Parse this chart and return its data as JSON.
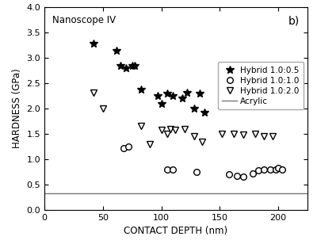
{
  "title_text": "Nanoscope IV",
  "panel_label": "b)",
  "xlabel": "CONTACT DEPTH (nm)",
  "ylabel": "HARDNESS (GPa)",
  "xlim": [
    0,
    225
  ],
  "ylim": [
    0.0,
    4.0
  ],
  "xticks": [
    0,
    50,
    100,
    150,
    200
  ],
  "yticks": [
    0.0,
    0.5,
    1.0,
    1.5,
    2.0,
    2.5,
    3.0,
    3.5,
    4.0
  ],
  "acrylic_y": 0.32,
  "hybrid_05_x": [
    42,
    62,
    65,
    70,
    75,
    77,
    83,
    97,
    100,
    105,
    110,
    118,
    122,
    128,
    133,
    137
  ],
  "hybrid_05_y": [
    3.28,
    3.15,
    2.85,
    2.8,
    2.85,
    2.85,
    2.38,
    2.25,
    2.1,
    2.3,
    2.25,
    2.2,
    2.32,
    2.0,
    2.3,
    1.92
  ],
  "hybrid_10_x": [
    68,
    72,
    105,
    110,
    130,
    158,
    165,
    170,
    178,
    183,
    188,
    193,
    198,
    200,
    203
  ],
  "hybrid_10_y": [
    1.22,
    1.25,
    0.8,
    0.8,
    0.75,
    0.7,
    0.67,
    0.65,
    0.72,
    0.78,
    0.8,
    0.8,
    0.8,
    0.82,
    0.8
  ],
  "hybrid_20_x": [
    42,
    50,
    83,
    90,
    100,
    105,
    108,
    112,
    120,
    128,
    135,
    152,
    162,
    170,
    180,
    188,
    195
  ],
  "hybrid_20_y": [
    2.32,
    2.0,
    1.65,
    1.3,
    1.58,
    1.5,
    1.6,
    1.58,
    1.6,
    1.45,
    1.35,
    1.5,
    1.5,
    1.48,
    1.5,
    1.45,
    1.45
  ],
  "bg_color": "#ffffff",
  "axis_color": "#000000",
  "data_color": "#000000",
  "acrylic_color": "#777777",
  "legend_labels": [
    "Hybrid 1.0:0.5",
    "Hybrid 1.0:1.0",
    "Hybrid 1.0:2.0",
    "Acrylic"
  ]
}
